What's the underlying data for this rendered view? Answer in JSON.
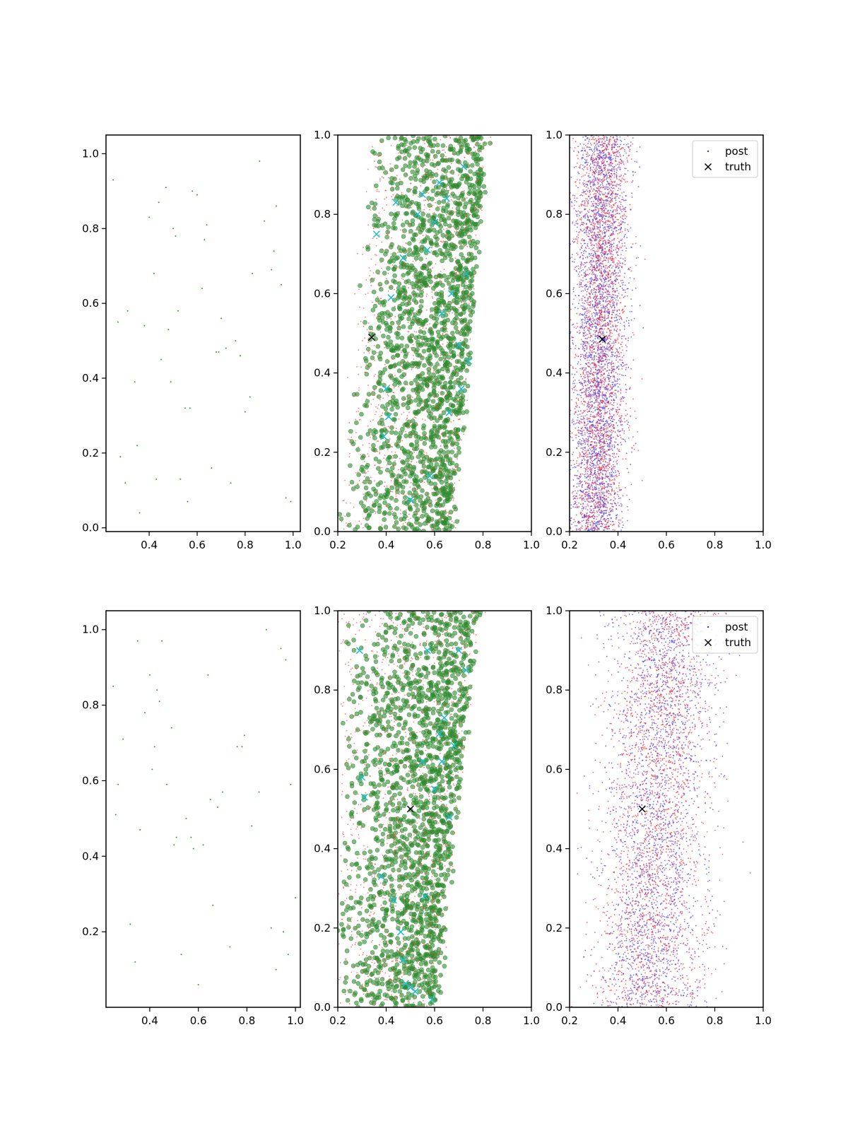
{
  "chart_data": [
    {
      "type": "scatter",
      "row": 1,
      "col": 1,
      "xlim": [
        0.22,
        1.03
      ],
      "ylim": [
        -0.01,
        1.05
      ],
      "xticks": [
        0.4,
        0.6,
        0.8,
        1.0
      ],
      "yticks": [
        0.0,
        0.2,
        0.4,
        0.6,
        0.8,
        1.0
      ],
      "tick_labels_x": [
        "0.4",
        "0.6",
        "0.8",
        "1.0"
      ],
      "tick_labels_y": [
        "0.0",
        "0.2",
        "0.4",
        "0.6",
        "0.8",
        "1.0"
      ],
      "series": [
        {
          "marker": "dot",
          "color": "#2ca02c",
          "x": [
            0.25,
            0.28,
            0.31,
            0.34,
            0.36,
            0.38,
            0.4,
            0.43,
            0.44,
            0.45,
            0.47,
            0.49,
            0.5,
            0.51,
            0.53,
            0.55,
            0.56,
            0.58,
            0.6,
            0.62,
            0.64,
            0.66,
            0.68,
            0.7,
            0.72,
            0.74,
            0.76,
            0.78,
            0.8,
            0.83,
            0.86,
            0.88,
            0.91,
            0.93,
            0.95,
            0.97,
            0.27,
            0.35,
            0.48,
            0.57,
            0.69,
            0.82,
            0.92,
            0.3,
            0.42,
            0.52,
            0.63,
            0.78,
            0.99
          ],
          "y": [
            0.93,
            0.19,
            0.58,
            0.39,
            0.04,
            0.54,
            0.83,
            0.13,
            0.87,
            0.45,
            0.91,
            0.39,
            0.8,
            0.78,
            0.13,
            0.32,
            0.07,
            0.9,
            0.89,
            0.64,
            0.81,
            0.16,
            0.47,
            0.56,
            0.48,
            0.12,
            0.5,
            0.46,
            0.31,
            0.68,
            0.98,
            0.82,
            0.69,
            0.86,
            0.65,
            0.08,
            0.55,
            0.22,
            0.53,
            0.32,
            0.47,
            0.35,
            0.74,
            0.12,
            0.68,
            0.58,
            0.77,
            0.46,
            0.07
          ]
        }
      ]
    },
    {
      "type": "scatter",
      "row": 1,
      "col": 2,
      "xlim": [
        0.2,
        1.0
      ],
      "ylim": [
        0.0,
        1.0
      ],
      "xticks": [
        0.2,
        0.4,
        0.6,
        0.8,
        1.0
      ],
      "yticks": [
        0.0,
        0.2,
        0.4,
        0.6,
        0.8,
        1.0
      ],
      "tick_labels_x": [
        "0.2",
        "0.4",
        "0.6",
        "0.8",
        "1.0"
      ],
      "tick_labels_y": [
        "0.0",
        "0.2",
        "0.4",
        "0.6",
        "0.8",
        "1.0"
      ],
      "band": {
        "x_left_at_y0": 0.2,
        "x_left_at_y1": 0.33,
        "x_right_at_y0": 0.68,
        "x_right_at_y1": 0.81,
        "density_peak": "right"
      },
      "series": [
        {
          "marker": "large-dot",
          "color": "#2e8b2e",
          "count": 1800
        },
        {
          "marker": "small-dot",
          "color": "#ff4444",
          "count": 1200
        },
        {
          "marker": "x",
          "color": "#17becf",
          "x": [
            0.36,
            0.42,
            0.4,
            0.41,
            0.39,
            0.44,
            0.47,
            0.53,
            0.55,
            0.57,
            0.6,
            0.62,
            0.65,
            0.67,
            0.7,
            0.72,
            0.74,
            0.73,
            0.63,
            0.5,
            0.58,
            0.66,
            0.71
          ],
          "y": [
            0.75,
            0.59,
            0.36,
            0.29,
            0.24,
            0.83,
            0.69,
            0.8,
            0.85,
            0.71,
            0.78,
            0.88,
            0.84,
            0.6,
            0.47,
            0.92,
            0.43,
            0.65,
            0.55,
            0.08,
            0.14,
            0.3,
            0.36
          ]
        },
        {
          "marker": "x",
          "color": "#000000",
          "x": [
            0.34
          ],
          "y": [
            0.49
          ]
        }
      ]
    },
    {
      "type": "scatter",
      "row": 1,
      "col": 3,
      "xlim": [
        0.2,
        1.0
      ],
      "ylim": [
        0.0,
        1.0
      ],
      "xticks": [
        0.2,
        0.4,
        0.6,
        0.8,
        1.0
      ],
      "yticks": [
        0.0,
        0.2,
        0.4,
        0.6,
        0.8,
        1.0
      ],
      "tick_labels_x": [
        "0.2",
        "0.4",
        "0.6",
        "0.8",
        "1.0"
      ],
      "tick_labels_y": [
        "0.0",
        "0.2",
        "0.4",
        "0.6",
        "0.8",
        "1.0"
      ],
      "band": {
        "x_center_at_y0": 0.31,
        "x_center_at_y1": 0.34,
        "x_spread": 0.055
      },
      "legend": {
        "loc": "upper right",
        "entries": [
          "post",
          "truth"
        ]
      },
      "series": [
        {
          "name": "post",
          "marker": "small-dot",
          "color": "#3333ff",
          "count": 3000
        },
        {
          "marker": "small-dot",
          "color": "#ff2222",
          "count": 2500
        },
        {
          "name": "truth",
          "marker": "x",
          "color": "#000000",
          "x": [
            0.335
          ],
          "y": [
            0.485
          ]
        }
      ]
    },
    {
      "type": "scatter",
      "row": 2,
      "col": 1,
      "xlim": [
        0.22,
        1.02
      ],
      "ylim": [
        0.0,
        1.05
      ],
      "xticks": [
        0.4,
        0.6,
        0.8,
        1.0
      ],
      "yticks": [
        0.2,
        0.4,
        0.6,
        0.8,
        1.0
      ],
      "tick_labels_x": [
        "0.4",
        "0.6",
        "0.8",
        "1.0"
      ],
      "tick_labels_y": [
        "0.2",
        "0.4",
        "0.6",
        "0.8",
        "1.0"
      ],
      "series": [
        {
          "marker": "dot",
          "color": "#2ca02c",
          "x": [
            0.25,
            0.27,
            0.29,
            0.32,
            0.34,
            0.36,
            0.38,
            0.4,
            0.42,
            0.43,
            0.45,
            0.47,
            0.49,
            0.5,
            0.53,
            0.55,
            0.57,
            0.6,
            0.62,
            0.64,
            0.66,
            0.68,
            0.7,
            0.73,
            0.76,
            0.79,
            0.82,
            0.85,
            0.88,
            0.9,
            0.92,
            0.94,
            0.96,
            0.98,
            1.0,
            0.26,
            0.35,
            0.41,
            0.44,
            0.51,
            0.58,
            0.65,
            0.78,
            0.95,
            0.97
          ],
          "y": [
            0.85,
            0.59,
            0.71,
            0.22,
            0.12,
            0.47,
            0.78,
            0.88,
            0.69,
            0.84,
            0.97,
            0.59,
            0.74,
            0.43,
            0.14,
            0.5,
            0.45,
            0.06,
            0.43,
            0.88,
            0.27,
            0.53,
            0.57,
            0.16,
            0.69,
            0.72,
            0.48,
            0.57,
            1.0,
            0.21,
            0.1,
            0.95,
            0.92,
            0.59,
            0.29,
            0.51,
            0.97,
            0.63,
            0.81,
            0.45,
            0.42,
            0.55,
            0.69,
            0.2,
            0.14
          ]
        }
      ]
    },
    {
      "type": "scatter",
      "row": 2,
      "col": 2,
      "xlim": [
        0.2,
        1.0
      ],
      "ylim": [
        0.0,
        1.0
      ],
      "xticks": [
        0.2,
        0.4,
        0.6,
        0.8,
        1.0
      ],
      "yticks": [
        0.0,
        0.2,
        0.4,
        0.6,
        0.8,
        1.0
      ],
      "tick_labels_x": [
        "0.2",
        "0.4",
        "0.6",
        "0.8",
        "1.0"
      ],
      "tick_labels_y": [
        "0.0",
        "0.2",
        "0.4",
        "0.6",
        "0.8",
        "1.0"
      ],
      "band": {
        "x_left_at_y0": 0.2,
        "x_left_at_y1": 0.2,
        "x_right_at_y0": 0.6,
        "x_right_at_y1": 0.78,
        "density_peak": "right"
      },
      "series": [
        {
          "marker": "large-dot",
          "color": "#2e8b2e",
          "count": 1800
        },
        {
          "marker": "small-dot",
          "color": "#ff4444",
          "count": 1200
        },
        {
          "marker": "x",
          "color": "#17becf",
          "x": [
            0.29,
            0.3,
            0.31,
            0.38,
            0.43,
            0.46,
            0.48,
            0.5,
            0.52,
            0.55,
            0.57,
            0.6,
            0.62,
            0.64,
            0.66,
            0.68,
            0.7,
            0.73,
            0.47,
            0.56,
            0.59,
            0.63
          ],
          "y": [
            0.9,
            0.58,
            0.53,
            0.33,
            0.27,
            0.19,
            0.06,
            0.05,
            0.04,
            0.62,
            0.9,
            0.55,
            0.69,
            0.73,
            0.48,
            0.66,
            0.9,
            0.85,
            0.12,
            0.28,
            0.02,
            0.62
          ]
        },
        {
          "marker": "x",
          "color": "#000000",
          "x": [
            0.5
          ],
          "y": [
            0.5
          ]
        }
      ]
    },
    {
      "type": "scatter",
      "row": 2,
      "col": 3,
      "xlim": [
        0.2,
        1.0
      ],
      "ylim": [
        0.0,
        1.0
      ],
      "xticks": [
        0.2,
        0.4,
        0.6,
        0.8,
        1.0
      ],
      "yticks": [
        0.0,
        0.2,
        0.4,
        0.6,
        0.8,
        1.0
      ],
      "tick_labels_x": [
        "0.2",
        "0.4",
        "0.6",
        "0.8",
        "1.0"
      ],
      "tick_labels_y": [
        "0.0",
        "0.2",
        "0.4",
        "0.6",
        "0.8",
        "1.0"
      ],
      "band": {
        "x_center_at_y0": 0.52,
        "x_center_at_y1": 0.6,
        "x_spread": 0.11
      },
      "legend": {
        "loc": "upper right",
        "entries": [
          "post",
          "truth"
        ]
      },
      "series": [
        {
          "name": "post",
          "marker": "small-dot",
          "color": "#3333ff",
          "count": 2200
        },
        {
          "marker": "small-dot",
          "color": "#ff2222",
          "count": 2200
        },
        {
          "name": "truth",
          "marker": "x",
          "color": "#000000",
          "x": [
            0.5
          ],
          "y": [
            0.5
          ]
        }
      ]
    }
  ]
}
